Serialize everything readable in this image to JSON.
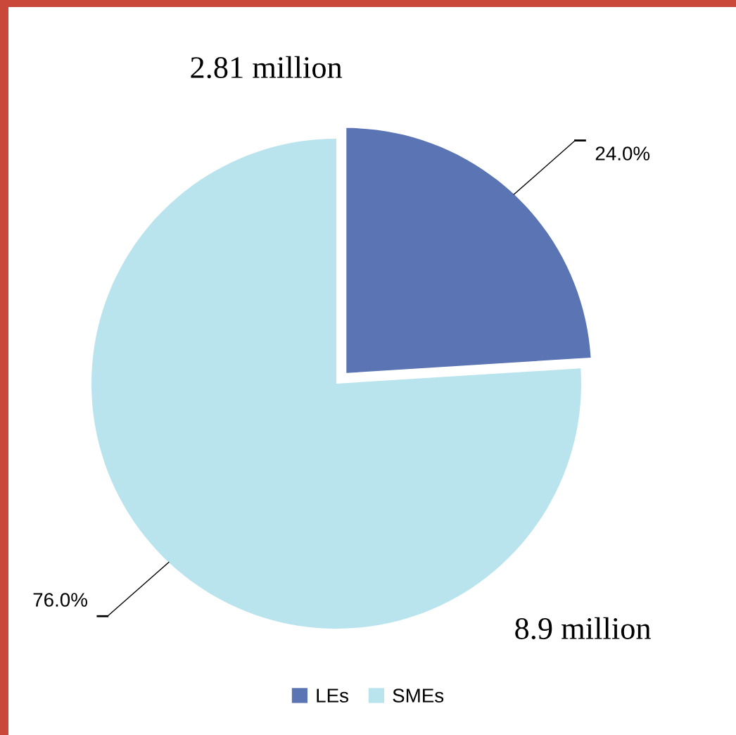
{
  "chart_data": {
    "type": "pie",
    "categories": [
      "LEs",
      "SMEs"
    ],
    "values": [
      24.0,
      76.0
    ],
    "colors": [
      "#5b74b4",
      "#b9e4ee"
    ],
    "value_labels": [
      "24.0%",
      "76.0%"
    ],
    "annotations": [
      "2.81 million",
      "8.9 million"
    ],
    "legend": "bottom"
  }
}
